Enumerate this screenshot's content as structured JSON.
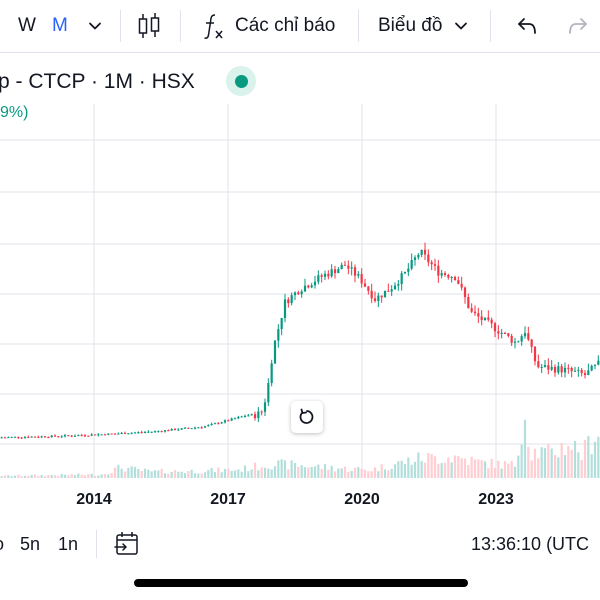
{
  "toolbar": {
    "interval_w": "W",
    "interval_m": "M",
    "indicators_label": "Các chỉ báo",
    "chart_type_label": "Biểu đồ",
    "icons": [
      "chevron-down-icon",
      "candlestick-icon",
      "fx-icon",
      "undo-icon",
      "redo-icon"
    ]
  },
  "header": {
    "symbol": "p - CTCP · 1M · HSX",
    "change": "9%)",
    "status_color": "#089981"
  },
  "chart_data": {
    "type": "candlestick",
    "x_tick_labels": [
      "2014",
      "2017",
      "2020",
      "2023"
    ],
    "colors": {
      "up": "#089981",
      "down": "#f23645",
      "vol_up": "#b2dfdb",
      "vol_down": "#ffcdd2",
      "grid": "#e0e3eb"
    },
    "grid": true,
    "price_range": [
      0,
      100
    ],
    "price_path": [
      [
        0,
        12.0
      ],
      [
        0.1,
        12.4
      ],
      [
        0.18,
        13.0
      ],
      [
        0.26,
        13.8
      ],
      [
        0.34,
        15.2
      ],
      [
        0.41,
        18.5
      ],
      [
        0.435,
        19.0
      ],
      [
        0.445,
        25.0
      ],
      [
        0.455,
        38.0
      ],
      [
        0.475,
        52.0
      ],
      [
        0.5,
        56.0
      ],
      [
        0.54,
        60.0
      ],
      [
        0.575,
        63.0
      ],
      [
        0.6,
        59.0
      ],
      [
        0.625,
        53.0
      ],
      [
        0.65,
        56.0
      ],
      [
        0.675,
        60.5
      ],
      [
        0.7,
        67.0
      ],
      [
        0.73,
        61.0
      ],
      [
        0.76,
        59.5
      ],
      [
        0.785,
        49.0
      ],
      [
        0.82,
        45.0
      ],
      [
        0.86,
        40.0
      ],
      [
        0.875,
        43.5
      ],
      [
        0.895,
        33.0
      ],
      [
        0.94,
        32.0
      ],
      [
        0.975,
        30.5
      ],
      [
        1.0,
        34.0
      ]
    ],
    "volume_path": [
      [
        0,
        3
      ],
      [
        0.17,
        5
      ],
      [
        0.2,
        15
      ],
      [
        0.25,
        9
      ],
      [
        0.33,
        10
      ],
      [
        0.4,
        12
      ],
      [
        0.45,
        20
      ],
      [
        0.5,
        18
      ],
      [
        0.58,
        13
      ],
      [
        0.62,
        12
      ],
      [
        0.7,
        28
      ],
      [
        0.76,
        30
      ],
      [
        0.8,
        22
      ],
      [
        0.86,
        18
      ],
      [
        0.873,
        100
      ],
      [
        0.885,
        38
      ],
      [
        0.92,
        35
      ],
      [
        0.95,
        50
      ],
      [
        0.97,
        34
      ],
      [
        1.0,
        72
      ]
    ]
  },
  "bottom": {
    "range_partial": "o",
    "range_5y": "5n",
    "range_1y": "1n",
    "clock": "13:36:10 (UTC"
  }
}
